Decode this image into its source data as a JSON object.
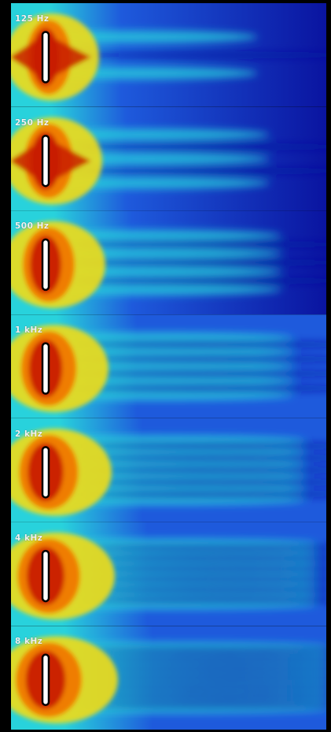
{
  "bands": [
    {
      "label": "125 Hz"
    },
    {
      "label": "250 Hz"
    },
    {
      "label": "500 Hz"
    },
    {
      "label": "1 kHz"
    },
    {
      "label": "2 kHz"
    },
    {
      "label": "4 kHz"
    },
    {
      "label": "8 kHz"
    }
  ],
  "colormap": {
    "high": "#c81e00",
    "mid_high": "#f07800",
    "mid": "#f0dc14",
    "mid_low": "#28d2dc",
    "low": "#1e5adc",
    "lowest": "#0a14a0"
  },
  "background_color": "#000000",
  "source_outline_color": "#000000",
  "source_fill_color": "#ffffff"
}
